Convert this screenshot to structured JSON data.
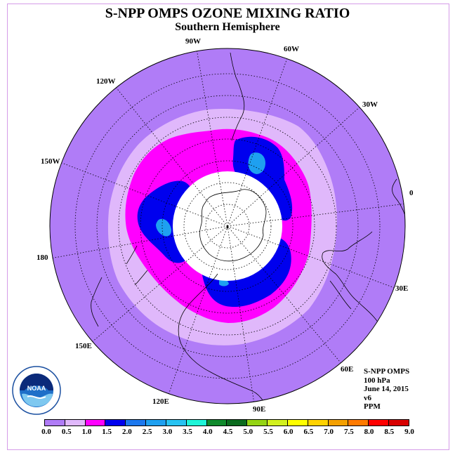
{
  "title": "S-NPP OMPS OZONE MIXING RATIO",
  "subtitle": "Southern Hemisphere",
  "longitude_labels": [
    {
      "id": "90w",
      "text": "90W"
    },
    {
      "id": "60w",
      "text": "60W"
    },
    {
      "id": "30w",
      "text": "30W"
    },
    {
      "id": "0",
      "text": "0"
    },
    {
      "id": "30e",
      "text": "30E"
    },
    {
      "id": "60e",
      "text": "60E"
    },
    {
      "id": "90e",
      "text": "90E"
    },
    {
      "id": "120e",
      "text": "120E"
    },
    {
      "id": "150e",
      "text": "150E"
    },
    {
      "id": "180",
      "text": "180"
    },
    {
      "id": "150w",
      "text": "150W"
    },
    {
      "id": "120w",
      "text": "120W"
    }
  ],
  "info": {
    "instrument": "S-NPP OMPS",
    "level": "100 hPa",
    "date": "June 14, 2015",
    "version": "v6",
    "units": "PPM"
  },
  "logo": {
    "text": "NOAA",
    "icon": "noaa-logo-icon"
  },
  "colorbar": {
    "ticks": [
      "0.0",
      "0.5",
      "1.0",
      "1.5",
      "2.0",
      "2.5",
      "3.0",
      "3.5",
      "4.0",
      "4.5",
      "5.0",
      "5.5",
      "6.0",
      "6.5",
      "7.0",
      "7.5",
      "8.0",
      "8.5",
      "9.0"
    ],
    "colors": [
      "#b07cf7",
      "#e0b8fb",
      "#ff00ff",
      "#0000ee",
      "#1c78ee",
      "#1ea0f0",
      "#27c3f2",
      "#1ef5d8",
      "#108a2c",
      "#0b6b1e",
      "#94d414",
      "#d2f01e",
      "#ffff00",
      "#ffd200",
      "#f4a000",
      "#ff7a00",
      "#ff0000",
      "#d80000",
      "#7a4b2c"
    ]
  },
  "map_colors": {
    "background": "#b07cf7",
    "band_0_5": "#e0b8fb",
    "band_1_0": "#ff00ff",
    "band_1_5": "#0000ee",
    "band_2_0": "#1c78ee",
    "band_2_5": "#1ea0f0",
    "polar_mask": "#ffffff"
  }
}
